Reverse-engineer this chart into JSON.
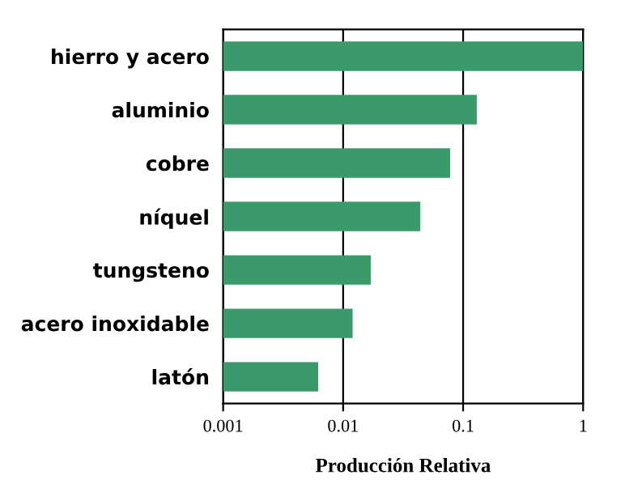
{
  "chart_data": {
    "type": "bar",
    "orientation": "horizontal",
    "log": "x",
    "xlabel": "Producción Relativa",
    "categories": [
      "hierro y acero",
      "aluminio",
      "cobre",
      "níquel",
      "tungsteno",
      "acero inoxidable",
      "latón"
    ],
    "values": [
      1,
      0.13,
      0.078,
      0.044,
      0.017,
      0.012,
      0.0062
    ],
    "color": "#3a9a6a",
    "xlim": [
      0.001,
      1
    ],
    "xticks": [
      0.001,
      0.01,
      0.1,
      1
    ],
    "grid": "x"
  }
}
